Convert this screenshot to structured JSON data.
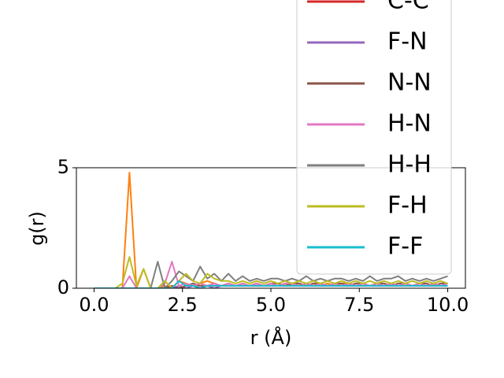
{
  "chart_data": {
    "type": "line",
    "xlabel": "r (Å)",
    "ylabel": "g(r)",
    "xlim": [
      -0.5,
      10.5
    ],
    "ylim": [
      0,
      5
    ],
    "xticks": [
      {
        "value": 0,
        "label": "0.0"
      },
      {
        "value": 2.5,
        "label": "2.5"
      },
      {
        "value": 5,
        "label": "5.0"
      },
      {
        "value": 7.5,
        "label": "7.5"
      },
      {
        "value": 10,
        "label": "10.0"
      }
    ],
    "yticks": [
      0,
      5
    ],
    "x": [
      0,
      0.2,
      0.4,
      0.6,
      0.8,
      1.0,
      1.2,
      1.4,
      1.6,
      1.8,
      2.0,
      2.2,
      2.4,
      2.6,
      2.8,
      3.0,
      3.2,
      3.4,
      3.6,
      3.8,
      4.0,
      4.2,
      4.4,
      4.6,
      4.8,
      5.0,
      5.2,
      5.4,
      5.6,
      5.8,
      6.0,
      6.2,
      6.4,
      6.6,
      6.8,
      7.0,
      7.2,
      7.4,
      7.6,
      7.8,
      8.0,
      8.2,
      8.4,
      8.6,
      8.8,
      9.0,
      9.2,
      9.4,
      9.6,
      9.8,
      10.0
    ],
    "series": [
      {
        "color": "#ff7f0e",
        "values": [
          0,
          0,
          0,
          0,
          0,
          4.8,
          0,
          0.8,
          0,
          0,
          0.1,
          0,
          0.3,
          0.2,
          0.1,
          0.2,
          0.3,
          0.2,
          0.1,
          0.2,
          0.1,
          0.2,
          0.1,
          0.2,
          0.1,
          0.2,
          0.1,
          0.2,
          0.1,
          0.2,
          0.1,
          0.2,
          0.1,
          0.2,
          0.1,
          0.2,
          0.2,
          0.1,
          0.2,
          0.1,
          0.2,
          0.1,
          0.2,
          0.1,
          0.2,
          0.1,
          0.2,
          0.1,
          0.2,
          0.1,
          0.2
        ]
      },
      {
        "name": "C-C",
        "color": "#d62728",
        "values": [
          0,
          0,
          0,
          0,
          0,
          0,
          0,
          0,
          0,
          0,
          0,
          0.1,
          0,
          0.1,
          0.1,
          0,
          0.1,
          0.1,
          0.1,
          0.1,
          0.1,
          0.1,
          0.1,
          0.1,
          0.1,
          0.1,
          0.1,
          0.1,
          0.1,
          0.1,
          0.1,
          0.1,
          0.1,
          0.1,
          0.1,
          0.1,
          0.1,
          0.1,
          0.1,
          0.1,
          0.1,
          0.1,
          0.1,
          0.1,
          0.1,
          0.1,
          0.1,
          0.1,
          0.1,
          0.1,
          0.1
        ]
      },
      {
        "name": "F-N",
        "color": "#9467bd",
        "values": [
          0,
          0,
          0,
          0,
          0,
          0,
          0,
          0,
          0,
          0,
          0,
          0,
          0.1,
          0,
          0.1,
          0.1,
          0.1,
          0,
          0.1,
          0.1,
          0.1,
          0.1,
          0.1,
          0.1,
          0.1,
          0.1,
          0.1,
          0.1,
          0.1,
          0.1,
          0.1,
          0.1,
          0.1,
          0.1,
          0.1,
          0.1,
          0.1,
          0.1,
          0.1,
          0.1,
          0.1,
          0.1,
          0.1,
          0.1,
          0.1,
          0.1,
          0.1,
          0.1,
          0.1,
          0.1,
          0.1
        ]
      },
      {
        "name": "N-N",
        "color": "#8c564b",
        "values": [
          0,
          0,
          0,
          0,
          0,
          0,
          0,
          0,
          0,
          0,
          0,
          0,
          0,
          0.1,
          0.2,
          0.1,
          0.1,
          0.2,
          0.1,
          0.2,
          0.1,
          0.2,
          0.1,
          0.2,
          0.1,
          0.2,
          0.2,
          0.1,
          0.2,
          0.2,
          0.1,
          0.2,
          0.2,
          0.1,
          0.2,
          0.2,
          0.1,
          0.2,
          0.2,
          0.1,
          0.2,
          0.2,
          0.1,
          0.2,
          0.2,
          0.1,
          0.2,
          0.2,
          0.1,
          0.2,
          0.2
        ]
      },
      {
        "name": "H-N",
        "color": "#e377c2",
        "values": [
          0,
          0,
          0,
          0,
          0,
          0.5,
          0,
          0,
          0,
          0,
          0.2,
          1.1,
          0.1,
          0.2,
          0.1,
          0.2,
          0.1,
          0.2,
          0.1,
          0.2,
          0.1,
          0.2,
          0.1,
          0.2,
          0.1,
          0.2,
          0.1,
          0.2,
          0.2,
          0.1,
          0.2,
          0.1,
          0.2,
          0.1,
          0.2,
          0.1,
          0.2,
          0.1,
          0.2,
          0.1,
          0.2,
          0.1,
          0.2,
          0.1,
          0.2,
          0.1,
          0.2,
          0.1,
          0.2,
          0.1,
          0.2
        ]
      },
      {
        "name": "H-H",
        "color": "#7f7f7f",
        "values": [
          0,
          0,
          0,
          0,
          0,
          0,
          0,
          0,
          0,
          1.1,
          0,
          0.3,
          0.7,
          0.5,
          0.3,
          0.9,
          0.4,
          0.6,
          0.3,
          0.6,
          0.3,
          0.5,
          0.3,
          0.4,
          0.3,
          0.4,
          0.4,
          0.3,
          0.4,
          0.3,
          0.5,
          0.3,
          0.4,
          0.3,
          0.4,
          0.4,
          0.3,
          0.4,
          0.3,
          0.5,
          0.3,
          0.4,
          0.4,
          0.5,
          0.3,
          0.4,
          0.3,
          0.4,
          0.3,
          0.4,
          0.5
        ]
      },
      {
        "name": "F-H",
        "color": "#bcbd22",
        "values": [
          0,
          0,
          0,
          0,
          0.2,
          1.3,
          0.1,
          0.8,
          0,
          0,
          0.3,
          0,
          0.3,
          0.6,
          0.3,
          0.2,
          0.6,
          0.4,
          0.3,
          0.3,
          0.2,
          0.3,
          0.2,
          0.3,
          0.2,
          0.3,
          0.2,
          0.3,
          0.2,
          0.3,
          0.2,
          0.3,
          0.2,
          0.3,
          0.2,
          0.3,
          0.2,
          0.3,
          0.2,
          0.3,
          0.2,
          0.3,
          0.2,
          0.3,
          0.2,
          0.3,
          0.2,
          0.3,
          0.2,
          0.3,
          0.2
        ]
      },
      {
        "name": "F-F",
        "color": "#17becf",
        "values": [
          0,
          0,
          0,
          0,
          0,
          0,
          0,
          0,
          0,
          0,
          0,
          0,
          0.3,
          0.1,
          0.1,
          0,
          0.1,
          0.1,
          0.1,
          0.1,
          0.1,
          0.1,
          0.1,
          0.1,
          0.1,
          0.1,
          0.1,
          0.1,
          0.1,
          0.1,
          0.1,
          0.1,
          0.1,
          0.1,
          0.1,
          0.1,
          0.1,
          0.1,
          0.1,
          0.1,
          0.1,
          0.1,
          0.1,
          0.1,
          0.1,
          0.1,
          0.1,
          0.1,
          0.1,
          0.1,
          0.1
        ]
      }
    ]
  }
}
